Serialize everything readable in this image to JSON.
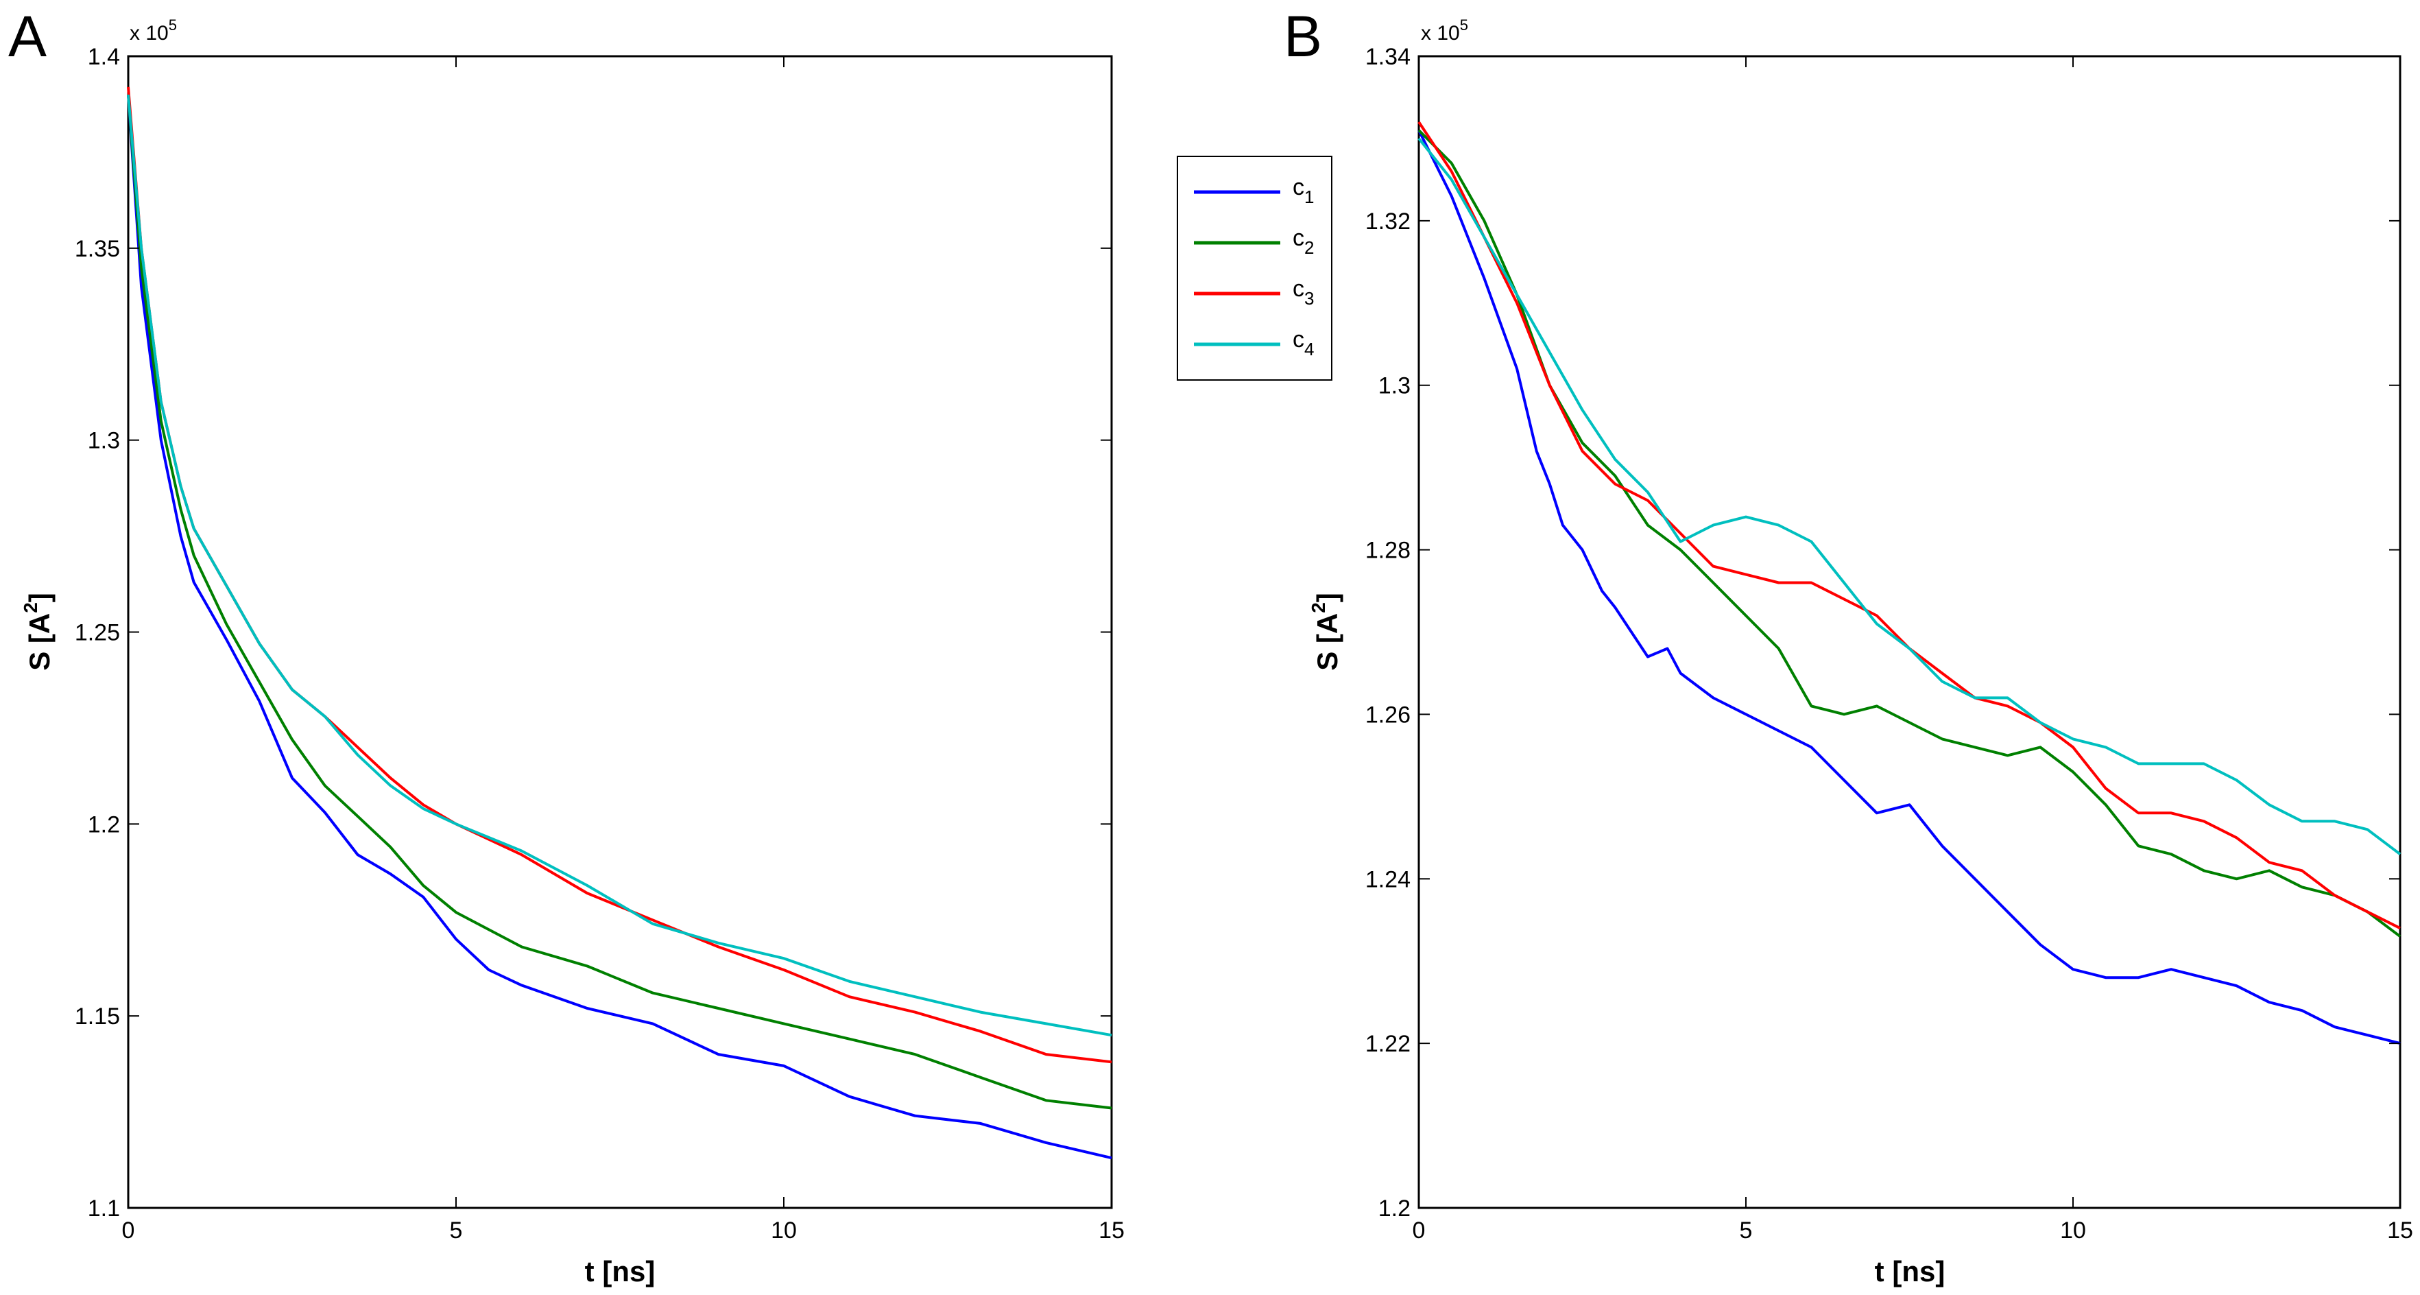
{
  "chart_data": [
    {
      "panel": "A",
      "type": "line",
      "xlabel": "t [ns]",
      "ylabel_main": "S [A",
      "ylabel_sup": "2",
      "ylabel_end": "]",
      "multiplier": "x 10",
      "multiplier_exp": "5",
      "xlim": [
        0,
        15
      ],
      "ylim": [
        1.1,
        1.4
      ],
      "xticks": [
        "0",
        "5",
        "10",
        "15"
      ],
      "yticks": [
        "1.1",
        "1.15",
        "1.2",
        "1.25",
        "1.3",
        "1.35",
        "1.4"
      ],
      "grid": false,
      "series": [
        {
          "name": "c1",
          "color": "#0000ff",
          "points": [
            [
              0,
              1.39
            ],
            [
              0.2,
              1.34
            ],
            [
              0.5,
              1.3
            ],
            [
              0.8,
              1.275
            ],
            [
              1,
              1.263
            ],
            [
              1.5,
              1.248
            ],
            [
              2,
              1.232
            ],
            [
              2.5,
              1.212
            ],
            [
              3,
              1.203
            ],
            [
              3.5,
              1.192
            ],
            [
              4,
              1.187
            ],
            [
              4.5,
              1.181
            ],
            [
              5,
              1.17
            ],
            [
              5.5,
              1.162
            ],
            [
              6,
              1.158
            ],
            [
              7,
              1.152
            ],
            [
              8,
              1.148
            ],
            [
              9,
              1.14
            ],
            [
              10,
              1.137
            ],
            [
              11,
              1.129
            ],
            [
              12,
              1.124
            ],
            [
              13,
              1.122
            ],
            [
              14,
              1.117
            ],
            [
              15,
              1.113
            ]
          ]
        },
        {
          "name": "c2",
          "color": "#008000",
          "points": [
            [
              0,
              1.39
            ],
            [
              0.2,
              1.345
            ],
            [
              0.5,
              1.305
            ],
            [
              0.8,
              1.282
            ],
            [
              1,
              1.27
            ],
            [
              1.5,
              1.252
            ],
            [
              2,
              1.237
            ],
            [
              2.5,
              1.222
            ],
            [
              3,
              1.21
            ],
            [
              3.5,
              1.202
            ],
            [
              4,
              1.194
            ],
            [
              4.5,
              1.184
            ],
            [
              5,
              1.177
            ],
            [
              6,
              1.168
            ],
            [
              7,
              1.163
            ],
            [
              8,
              1.156
            ],
            [
              9,
              1.152
            ],
            [
              10,
              1.148
            ],
            [
              11,
              1.144
            ],
            [
              12,
              1.14
            ],
            [
              13,
              1.134
            ],
            [
              14,
              1.128
            ],
            [
              15,
              1.126
            ]
          ]
        },
        {
          "name": "c3",
          "color": "#ff0000",
          "points": [
            [
              0,
              1.392
            ],
            [
              0.2,
              1.35
            ],
            [
              0.5,
              1.31
            ],
            [
              0.8,
              1.288
            ],
            [
              1,
              1.277
            ],
            [
              1.5,
              1.262
            ],
            [
              2,
              1.247
            ],
            [
              2.5,
              1.235
            ],
            [
              3,
              1.228
            ],
            [
              3.5,
              1.22
            ],
            [
              4,
              1.212
            ],
            [
              4.5,
              1.205
            ],
            [
              5,
              1.2
            ],
            [
              6,
              1.192
            ],
            [
              7,
              1.182
            ],
            [
              8,
              1.175
            ],
            [
              9,
              1.168
            ],
            [
              10,
              1.162
            ],
            [
              11,
              1.155
            ],
            [
              12,
              1.151
            ],
            [
              13,
              1.146
            ],
            [
              14,
              1.14
            ],
            [
              15,
              1.138
            ]
          ]
        },
        {
          "name": "c4",
          "color": "#00bfbf",
          "points": [
            [
              0,
              1.39
            ],
            [
              0.2,
              1.35
            ],
            [
              0.5,
              1.31
            ],
            [
              0.8,
              1.288
            ],
            [
              1,
              1.277
            ],
            [
              1.5,
              1.262
            ],
            [
              2,
              1.247
            ],
            [
              2.5,
              1.235
            ],
            [
              3,
              1.228
            ],
            [
              3.5,
              1.218
            ],
            [
              4,
              1.21
            ],
            [
              4.5,
              1.204
            ],
            [
              5,
              1.2
            ],
            [
              6,
              1.193
            ],
            [
              7,
              1.184
            ],
            [
              8,
              1.174
            ],
            [
              9,
              1.169
            ],
            [
              10,
              1.165
            ],
            [
              11,
              1.159
            ],
            [
              12,
              1.155
            ],
            [
              13,
              1.151
            ],
            [
              14,
              1.148
            ],
            [
              15,
              1.145
            ]
          ]
        }
      ]
    },
    {
      "panel": "B",
      "type": "line",
      "xlabel": "t [ns]",
      "ylabel_main": "S [A",
      "ylabel_sup": "2",
      "ylabel_end": "]",
      "multiplier": "x 10",
      "multiplier_exp": "5",
      "xlim": [
        0,
        15
      ],
      "ylim": [
        1.2,
        1.34
      ],
      "xticks": [
        "0",
        "5",
        "10",
        "15"
      ],
      "yticks": [
        "1.2",
        "1.22",
        "1.24",
        "1.26",
        "1.28",
        "1.3",
        "1.32",
        "1.34"
      ],
      "grid": false,
      "series": [
        {
          "name": "c1",
          "color": "#0000ff",
          "points": [
            [
              0,
              1.331
            ],
            [
              0.5,
              1.323
            ],
            [
              1,
              1.313
            ],
            [
              1.5,
              1.302
            ],
            [
              1.8,
              1.292
            ],
            [
              2,
              1.288
            ],
            [
              2.2,
              1.283
            ],
            [
              2.5,
              1.28
            ],
            [
              2.8,
              1.275
            ],
            [
              3,
              1.273
            ],
            [
              3.5,
              1.267
            ],
            [
              3.8,
              1.268
            ],
            [
              4,
              1.265
            ],
            [
              4.5,
              1.262
            ],
            [
              5,
              1.26
            ],
            [
              5.5,
              1.258
            ],
            [
              6,
              1.256
            ],
            [
              6.5,
              1.252
            ],
            [
              7,
              1.248
            ],
            [
              7.5,
              1.249
            ],
            [
              8,
              1.244
            ],
            [
              8.5,
              1.24
            ],
            [
              9,
              1.236
            ],
            [
              9.5,
              1.232
            ],
            [
              10,
              1.229
            ],
            [
              10.5,
              1.228
            ],
            [
              11,
              1.228
            ],
            [
              11.5,
              1.229
            ],
            [
              12,
              1.228
            ],
            [
              12.5,
              1.227
            ],
            [
              13,
              1.225
            ],
            [
              13.5,
              1.224
            ],
            [
              14,
              1.222
            ],
            [
              14.5,
              1.221
            ],
            [
              15,
              1.22
            ]
          ]
        },
        {
          "name": "c2",
          "color": "#008000",
          "points": [
            [
              0,
              1.331
            ],
            [
              0.5,
              1.327
            ],
            [
              1,
              1.32
            ],
            [
              1.5,
              1.311
            ],
            [
              2,
              1.3
            ],
            [
              2.5,
              1.293
            ],
            [
              3,
              1.289
            ],
            [
              3.5,
              1.283
            ],
            [
              4,
              1.28
            ],
            [
              4.5,
              1.276
            ],
            [
              5,
              1.272
            ],
            [
              5.5,
              1.268
            ],
            [
              6,
              1.261
            ],
            [
              6.5,
              1.26
            ],
            [
              7,
              1.261
            ],
            [
              7.5,
              1.259
            ],
            [
              8,
              1.257
            ],
            [
              8.5,
              1.256
            ],
            [
              9,
              1.255
            ],
            [
              9.5,
              1.256
            ],
            [
              10,
              1.253
            ],
            [
              10.5,
              1.249
            ],
            [
              11,
              1.244
            ],
            [
              11.5,
              1.243
            ],
            [
              12,
              1.241
            ],
            [
              12.5,
              1.24
            ],
            [
              13,
              1.241
            ],
            [
              13.5,
              1.239
            ],
            [
              14,
              1.238
            ],
            [
              14.5,
              1.236
            ],
            [
              15,
              1.233
            ]
          ]
        },
        {
          "name": "c3",
          "color": "#ff0000",
          "points": [
            [
              0,
              1.332
            ],
            [
              0.5,
              1.326
            ],
            [
              1,
              1.318
            ],
            [
              1.5,
              1.31
            ],
            [
              2,
              1.3
            ],
            [
              2.5,
              1.292
            ],
            [
              3,
              1.288
            ],
            [
              3.5,
              1.286
            ],
            [
              4,
              1.282
            ],
            [
              4.5,
              1.278
            ],
            [
              5,
              1.277
            ],
            [
              5.5,
              1.276
            ],
            [
              6,
              1.276
            ],
            [
              6.5,
              1.274
            ],
            [
              7,
              1.272
            ],
            [
              7.5,
              1.268
            ],
            [
              8,
              1.265
            ],
            [
              8.5,
              1.262
            ],
            [
              9,
              1.261
            ],
            [
              9.5,
              1.259
            ],
            [
              10,
              1.256
            ],
            [
              10.5,
              1.251
            ],
            [
              11,
              1.248
            ],
            [
              11.5,
              1.248
            ],
            [
              12,
              1.247
            ],
            [
              12.5,
              1.245
            ],
            [
              13,
              1.242
            ],
            [
              13.5,
              1.241
            ],
            [
              14,
              1.238
            ],
            [
              14.5,
              1.236
            ],
            [
              15,
              1.234
            ]
          ]
        },
        {
          "name": "c4",
          "color": "#00bfbf",
          "points": [
            [
              0,
              1.33
            ],
            [
              0.5,
              1.325
            ],
            [
              1,
              1.318
            ],
            [
              1.5,
              1.311
            ],
            [
              2,
              1.304
            ],
            [
              2.5,
              1.297
            ],
            [
              3,
              1.291
            ],
            [
              3.5,
              1.287
            ],
            [
              4,
              1.281
            ],
            [
              4.5,
              1.283
            ],
            [
              5,
              1.284
            ],
            [
              5.5,
              1.283
            ],
            [
              6,
              1.281
            ],
            [
              6.5,
              1.276
            ],
            [
              7,
              1.271
            ],
            [
              7.5,
              1.268
            ],
            [
              8,
              1.264
            ],
            [
              8.5,
              1.262
            ],
            [
              9,
              1.262
            ],
            [
              9.5,
              1.259
            ],
            [
              10,
              1.257
            ],
            [
              10.5,
              1.256
            ],
            [
              11,
              1.254
            ],
            [
              11.5,
              1.254
            ],
            [
              12,
              1.254
            ],
            [
              12.5,
              1.252
            ],
            [
              13,
              1.249
            ],
            [
              13.5,
              1.247
            ],
            [
              14,
              1.247
            ],
            [
              14.5,
              1.246
            ],
            [
              15,
              1.243
            ]
          ]
        }
      ]
    }
  ],
  "legend": {
    "entries": [
      {
        "label": "c",
        "sub": "1",
        "color": "#0000ff"
      },
      {
        "label": "c",
        "sub": "2",
        "color": "#008000"
      },
      {
        "label": "c",
        "sub": "3",
        "color": "#ff0000"
      },
      {
        "label": "c",
        "sub": "4",
        "color": "#00bfbf"
      }
    ]
  }
}
